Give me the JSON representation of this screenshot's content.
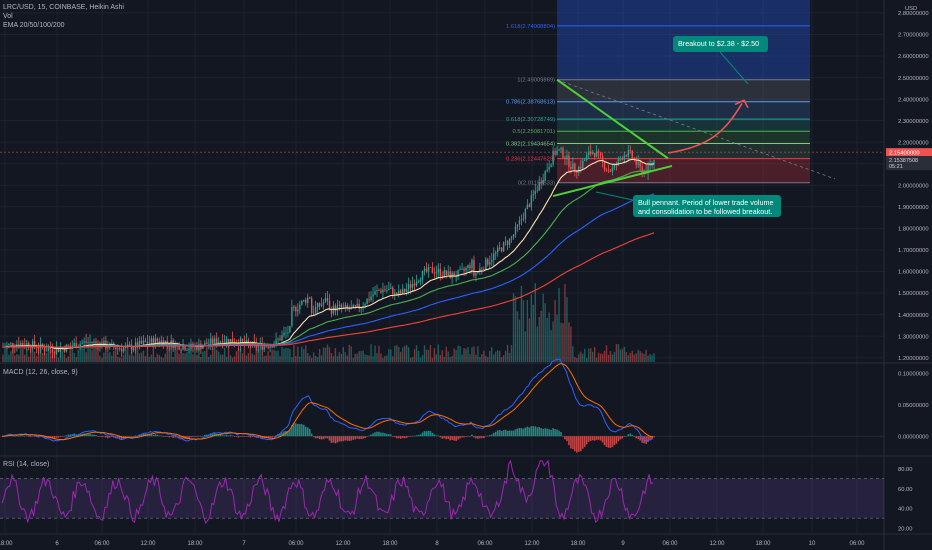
{
  "header": {
    "symbol_line": "LRC/USD, 15, COINBASE, Heikin Ashi",
    "vol_label": "Vol",
    "ema_label": "EMA 20/50/100/200",
    "macd_label": "MACD (12, 26, close, 9)",
    "rsi_label": "RSI (14, close)"
  },
  "annotations": {
    "breakout": "Breakout to $2.38 - $2.50",
    "pennant": "Bull pennant. Period of lower trade volume and consolidation to be followed breakout."
  },
  "colors": {
    "background": "#131722",
    "bull": "#26a69a",
    "bear": "#ef5350",
    "ema20": "#ffe0b2",
    "ema50": "#4caf50",
    "ema100": "#2962ff",
    "ema200": "#f44336",
    "callout": "#00897b",
    "rsi": "#9c27b0",
    "trendline": "#4cd137"
  },
  "chart_data": {
    "type": "candlestick",
    "price_axis": {
      "ylim": [
        1.18,
        2.86
      ],
      "ticks": [
        "2.80000000",
        "2.70000000",
        "2.60000000",
        "2.50000000",
        "2.40000000",
        "2.30000000",
        "2.20000000",
        "2.10000000",
        "2.00000000",
        "1.90000000",
        "1.80000000",
        "1.70000000",
        "1.60000000",
        "1.50000000",
        "1.40000000",
        "1.30000000",
        "1.20000000"
      ],
      "unit": "USD",
      "last_price": "2.15400000",
      "last_price_secondary": "2.15387508",
      "countdown": "05:21"
    },
    "time_axis": {
      "ticks": [
        "18:00",
        "6",
        "06:00",
        "12:00",
        "18:00",
        "7",
        "06:00",
        "12:00",
        "18:00",
        "8",
        "06:00",
        "12:00",
        "18:00",
        "9",
        "06:00",
        "12:00",
        "18:00",
        "10",
        "06:00"
      ]
    },
    "fib_levels": [
      {
        "label": "1.618(2.74008804)",
        "value": 2.74,
        "color": "#2962ff"
      },
      {
        "label": "1(2.49009869)",
        "value": 2.49,
        "color": "#787b86"
      },
      {
        "label": "0.786(2.38768613)",
        "value": 2.388,
        "color": "#5b9cf6"
      },
      {
        "label": "0.618(2.30728749)",
        "value": 2.307,
        "color": "#26a69a"
      },
      {
        "label": "0.5(2.25081701)",
        "value": 2.251,
        "color": "#4caf50"
      },
      {
        "label": "0.382(2.19434654)",
        "value": 2.194,
        "color": "#81c784"
      },
      {
        "label": "0.236(2.12447629)",
        "value": 2.124,
        "color": "#f23645"
      },
      {
        "label": "0(2.01153533)",
        "value": 2.012,
        "color": "#787b86"
      }
    ],
    "macd_axis": {
      "ylim": [
        -0.03,
        0.115
      ],
      "ticks": [
        "0.10000000",
        "0.05000000",
        "0.00000000"
      ]
    },
    "rsi_axis": {
      "ylim": [
        15,
        92
      ],
      "ticks": [
        "80.00",
        "60.00",
        "40.00",
        "20.00"
      ],
      "bands": [
        70,
        30
      ]
    }
  }
}
